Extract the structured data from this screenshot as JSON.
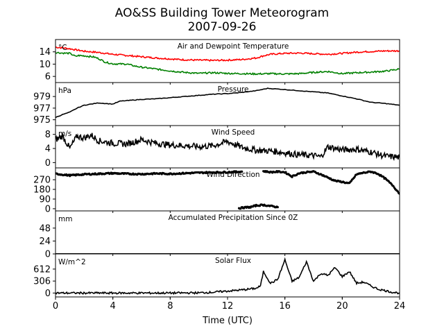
{
  "title": "AO&SS Building Tower Meteorogram",
  "subtitle": "2007-09-26",
  "xlabel": "Time (UTC)",
  "xlim": [
    0,
    24
  ],
  "x_ticks": [
    "0",
    "4",
    "8",
    "12",
    "16",
    "20",
    "24"
  ],
  "chart_data": [
    {
      "type": "line",
      "panel_title": "Air and Dewpoint Temperature",
      "unit": "°C",
      "ylim": [
        4,
        18
      ],
      "y_ticks": [
        6,
        10,
        14
      ],
      "series": [
        {
          "color": "#ff0000",
          "x": [
            0,
            0.5,
            1,
            1.5,
            2,
            3,
            4,
            5,
            6,
            7,
            8,
            9,
            10,
            11,
            12,
            13,
            14,
            14.5,
            15,
            16,
            17,
            18,
            19,
            20,
            21,
            22,
            23,
            24
          ],
          "y": [
            15.5,
            15.3,
            15.0,
            14.6,
            14.2,
            13.8,
            13.2,
            12.8,
            12.4,
            12.0,
            11.7,
            11.4,
            11.3,
            11.2,
            11.3,
            11.5,
            12.0,
            12.7,
            13.2,
            13.5,
            13.6,
            13.4,
            13.2,
            13.5,
            13.9,
            14.1,
            14.3,
            14.3
          ]
        },
        {
          "color": "#008000",
          "x": [
            0,
            0.5,
            1,
            1.4,
            1.6,
            2,
            2.7,
            3,
            3.5,
            4,
            5,
            5.5,
            6,
            7,
            8,
            9,
            10,
            11,
            12,
            13,
            14,
            15,
            16,
            17,
            18,
            19,
            20,
            21,
            22,
            23,
            24
          ],
          "y": [
            13.8,
            13.6,
            13.5,
            12.5,
            12.8,
            12.7,
            12.3,
            11.8,
            10.6,
            10.1,
            10.0,
            9.4,
            9.0,
            8.4,
            7.8,
            7.3,
            7.0,
            7.2,
            7.0,
            6.9,
            6.8,
            6.9,
            6.8,
            6.9,
            7.3,
            7.6,
            6.9,
            7.2,
            7.4,
            7.7,
            8.4
          ]
        }
      ]
    },
    {
      "type": "line",
      "panel_title": "Pressure",
      "unit": "hPa",
      "ylim": [
        974,
        981.4
      ],
      "y_ticks": [
        975,
        977,
        979
      ],
      "series": [
        {
          "color": "#000000",
          "x": [
            0,
            0.5,
            1,
            1.5,
            2,
            3,
            3.5,
            4,
            4.5,
            5,
            6,
            7,
            8,
            9,
            10,
            11,
            12,
            13,
            14,
            14.8,
            16,
            17,
            18,
            19,
            20,
            21,
            22,
            23,
            24
          ],
          "y": [
            975.4,
            975.9,
            976.3,
            977.0,
            977.5,
            977.9,
            977.8,
            977.7,
            978.2,
            978.3,
            978.5,
            978.6,
            978.8,
            979.0,
            979.2,
            979.4,
            979.5,
            979.7,
            980.0,
            980.4,
            980.2,
            980.0,
            979.8,
            979.6,
            979.1,
            978.6,
            978.0,
            977.8,
            977.5
          ]
        }
      ]
    },
    {
      "type": "line",
      "panel_title": "Wind Speed",
      "unit": "m/s",
      "ylim": [
        -1.5,
        10.5
      ],
      "y_ticks": [
        0,
        4,
        8
      ],
      "series": [
        {
          "color": "#000000",
          "x": [
            0,
            0.5,
            1,
            1.5,
            2,
            2.5,
            3,
            4,
            5,
            6,
            7,
            8,
            9,
            10,
            11,
            12,
            13,
            14,
            15,
            16,
            17,
            18,
            18.5,
            19,
            20,
            21,
            22,
            23,
            24
          ],
          "y": [
            6.5,
            7.5,
            4.0,
            7.5,
            7.0,
            7.8,
            6.2,
            5.5,
            5.3,
            6.5,
            5.5,
            5.0,
            4.8,
            4.5,
            4.8,
            6.0,
            4.3,
            3.5,
            3.3,
            2.8,
            2.2,
            2.0,
            1.6,
            4.5,
            3.6,
            3.8,
            3.0,
            1.8,
            1.5
          ]
        }
      ]
    },
    {
      "type": "scatter",
      "panel_title": "Wind Direction",
      "ylim": [
        -20,
        380
      ],
      "y_ticks": [
        0,
        90,
        180,
        270
      ],
      "series": [
        {
          "color": "#000000",
          "segments": [
            {
              "x": [
                0,
                1,
                2,
                3,
                4,
                5,
                6,
                7,
                8,
                9,
                10,
                11,
                12,
                13
              ],
              "y": [
                325,
                310,
                320,
                325,
                330,
                325,
                322,
                328,
                325,
                330,
                335,
                338,
                340,
                345
              ]
            },
            {
              "x": [
                14.5,
                15,
                15.5,
                16,
                16.5,
                17,
                17.5,
                18,
                18.5,
                19,
                19.5,
                20,
                20.5,
                21,
                21.5,
                22,
                22.5,
                23,
                23.5,
                24
              ],
              "y": [
                350,
                340,
                345,
                340,
                300,
                330,
                340,
                345,
                320,
                290,
                260,
                250,
                235,
                320,
                335,
                345,
                325,
                280,
                220,
                140
              ]
            },
            {
              "x": [
                12.8,
                13.2,
                13.6,
                14.0,
                14.5,
                15.0,
                15.5
              ],
              "y": [
                5,
                12,
                15,
                30,
                35,
                25,
                15
              ]
            }
          ]
        }
      ]
    },
    {
      "type": "line",
      "panel_title": "Accumulated Precipitation Since 0Z",
      "unit": "mm",
      "ylim": [
        0,
        80
      ],
      "y_ticks": [
        0,
        24,
        48
      ],
      "series": [
        {
          "color": "#000000",
          "x": [
            0,
            24
          ],
          "y": [
            0,
            0
          ]
        }
      ]
    },
    {
      "type": "line",
      "panel_title": "Solar Flux",
      "unit": "W/m^2",
      "ylim": [
        -100,
        1000
      ],
      "y_ticks": [
        0,
        306,
        612
      ],
      "series": [
        {
          "color": "#000000",
          "x": [
            0,
            8,
            10,
            11,
            12,
            13,
            14,
            14.3,
            14.5,
            15,
            15.5,
            16,
            16.5,
            17,
            17.5,
            18,
            18.5,
            19,
            19.5,
            20,
            20.5,
            21,
            21.5,
            22,
            22.5,
            23,
            23.5,
            24
          ],
          "y": [
            0,
            0,
            5,
            20,
            50,
            80,
            120,
            180,
            550,
            250,
            350,
            850,
            300,
            400,
            800,
            300,
            500,
            450,
            650,
            420,
            550,
            250,
            280,
            180,
            100,
            60,
            20,
            0
          ]
        }
      ]
    }
  ]
}
